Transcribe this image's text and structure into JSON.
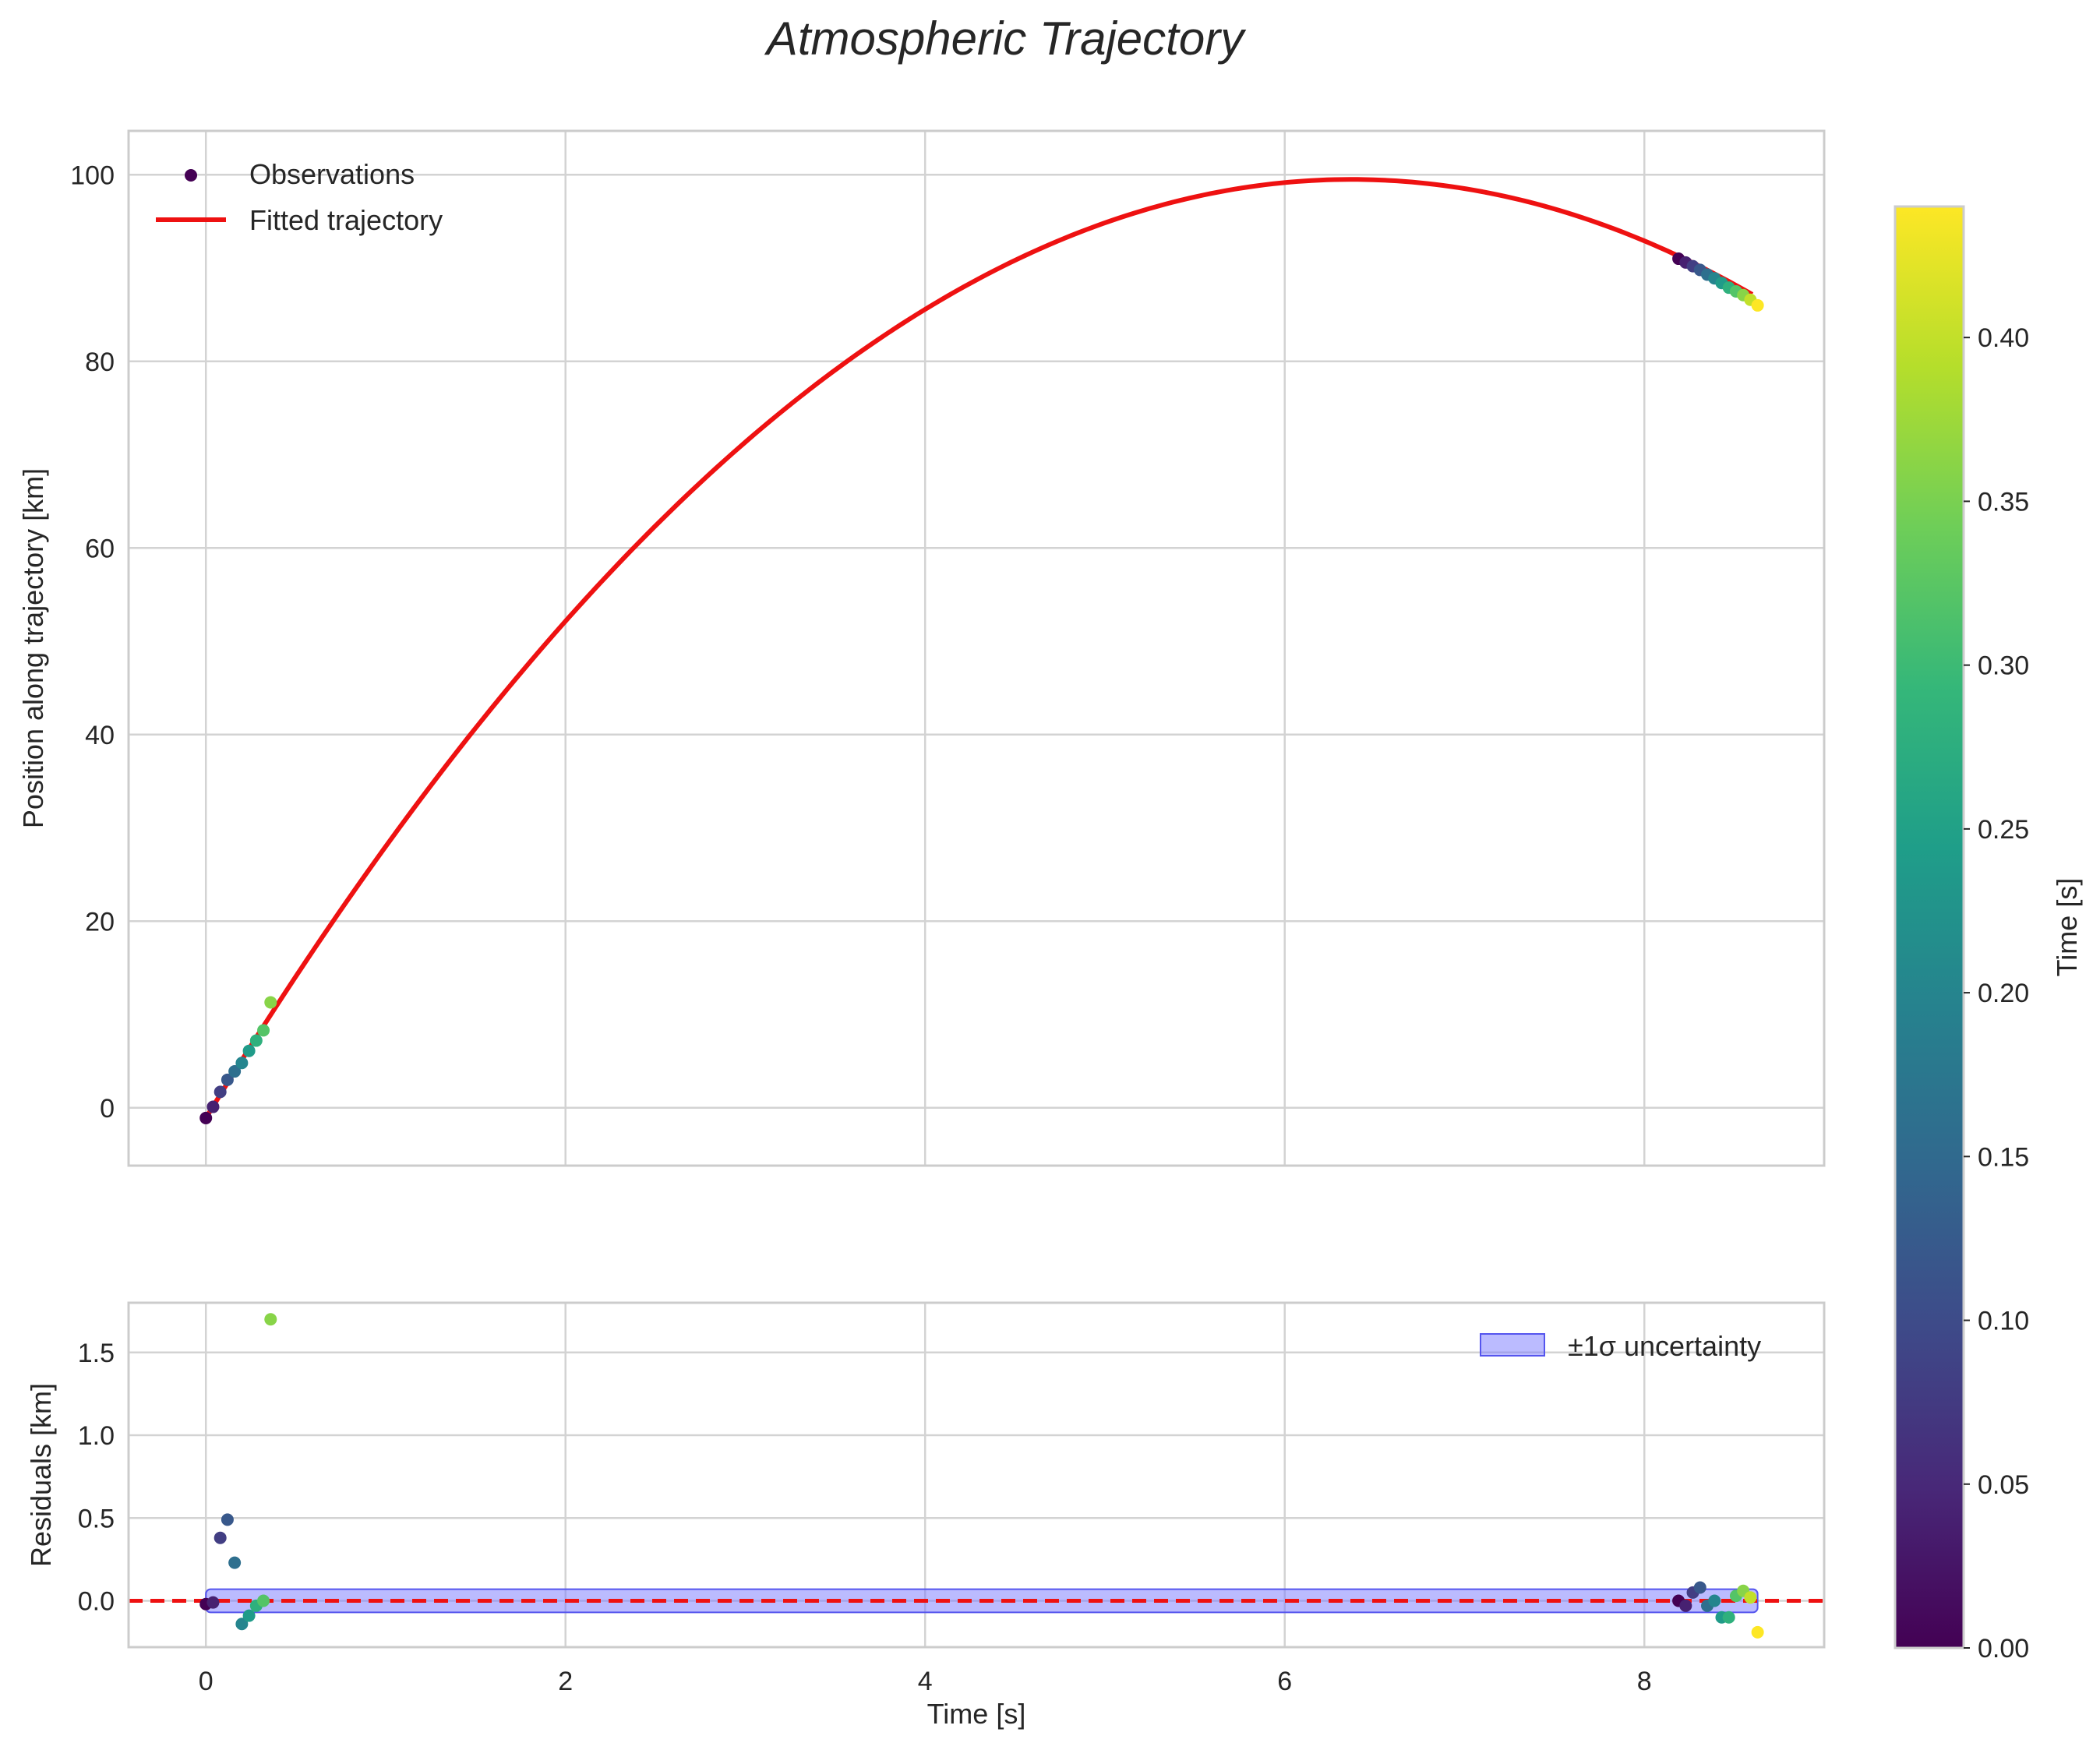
{
  "title": "Atmospheric Trajectory",
  "chart_data": [
    {
      "type": "line",
      "name": "trajectory-panel",
      "xlabel": "",
      "ylabel": "Position along trajectory [km]",
      "xlim": [
        -0.43,
        9.0
      ],
      "ylim": [
        -6.2,
        104.7
      ],
      "xticks": [
        0,
        2,
        4,
        6,
        8
      ],
      "xtick_labels": [
        "0",
        "2",
        "4",
        "6",
        "8"
      ],
      "yticks": [
        0,
        20,
        40,
        60,
        80,
        100
      ],
      "ytick_labels": [
        "0",
        "20",
        "40",
        "60",
        "80",
        "100"
      ],
      "grid": true,
      "legend_position": "top-left",
      "fit": {
        "label": "Fitted trajectory",
        "color": "#ee1111",
        "t_start": 0.0,
        "t_end": 8.6,
        "peak_time": 6.37,
        "peak_position": 99.5,
        "start_position": -1.1
      },
      "observations": {
        "label": "Observations",
        "t": [
          0.0,
          0.04,
          0.08,
          0.12,
          0.16,
          0.2,
          0.24,
          0.28,
          0.32,
          0.36,
          8.19,
          8.23,
          8.27,
          8.31,
          8.35,
          8.39,
          8.43,
          8.47,
          8.51,
          8.55,
          8.59,
          8.63
        ],
        "position": [
          -1.1,
          0.1,
          1.7,
          3.0,
          3.9,
          4.8,
          6.1,
          7.2,
          8.3,
          11.3,
          91.0,
          90.6,
          90.2,
          89.8,
          89.3,
          88.9,
          88.4,
          87.9,
          87.5,
          87.1,
          86.6,
          86.0
        ],
        "color_value": [
          0.0,
          0.04,
          0.08,
          0.12,
          0.16,
          0.2,
          0.24,
          0.28,
          0.32,
          0.36,
          0.0,
          0.04,
          0.08,
          0.12,
          0.16,
          0.2,
          0.24,
          0.28,
          0.32,
          0.36,
          0.4,
          0.44
        ]
      }
    },
    {
      "type": "scatter",
      "name": "residuals-panel",
      "xlabel": "Time [s]",
      "ylabel": "Residuals [km]",
      "xlim": [
        -0.43,
        9.0
      ],
      "ylim": [
        -0.28,
        1.8
      ],
      "xticks": [
        0,
        2,
        4,
        6,
        8
      ],
      "xtick_labels": [
        "0",
        "2",
        "4",
        "6",
        "8"
      ],
      "yticks": [
        0.0,
        0.5,
        1.0,
        1.5
      ],
      "ytick_labels": [
        "0.0",
        "0.5",
        "1.0",
        "1.5"
      ],
      "grid": true,
      "legend_position": "top-right",
      "zero_line_color": "#ee1111",
      "band": {
        "label": "±1σ uncertainty",
        "color": "#7777ff",
        "t_start": 0.0,
        "t_end": 8.63,
        "half_width": 0.07
      },
      "observations": {
        "t": [
          0.0,
          0.04,
          0.08,
          0.12,
          0.16,
          0.2,
          0.24,
          0.28,
          0.32,
          0.36,
          8.19,
          8.23,
          8.27,
          8.31,
          8.35,
          8.39,
          8.43,
          8.47,
          8.51,
          8.55,
          8.59,
          8.63
        ],
        "residual": [
          -0.02,
          -0.01,
          0.38,
          0.49,
          0.23,
          -0.14,
          -0.09,
          -0.03,
          0.0,
          1.7,
          0.0,
          -0.03,
          0.05,
          0.08,
          -0.03,
          0.0,
          -0.1,
          -0.1,
          0.03,
          0.06,
          0.02,
          -0.19
        ],
        "color_value": [
          0.0,
          0.04,
          0.08,
          0.12,
          0.16,
          0.2,
          0.24,
          0.28,
          0.32,
          0.36,
          0.0,
          0.04,
          0.08,
          0.12,
          0.16,
          0.2,
          0.24,
          0.28,
          0.32,
          0.36,
          0.4,
          0.44
        ]
      }
    },
    {
      "type": "heatmap",
      "name": "colorbar",
      "label": "Time [s]",
      "range": [
        0.0,
        0.44
      ],
      "ticks": [
        0.0,
        0.05,
        0.1,
        0.15,
        0.2,
        0.25,
        0.3,
        0.35,
        0.4
      ],
      "tick_labels": [
        "0.00",
        "0.05",
        "0.10",
        "0.15",
        "0.20",
        "0.25",
        "0.30",
        "0.35",
        "0.40"
      ],
      "colormap": "viridis",
      "colormap_stops": [
        "#440154",
        "#482878",
        "#3e4a89",
        "#31688e",
        "#26828e",
        "#1f9e89",
        "#35b779",
        "#6ece58",
        "#b5de2b",
        "#fde725"
      ]
    }
  ]
}
